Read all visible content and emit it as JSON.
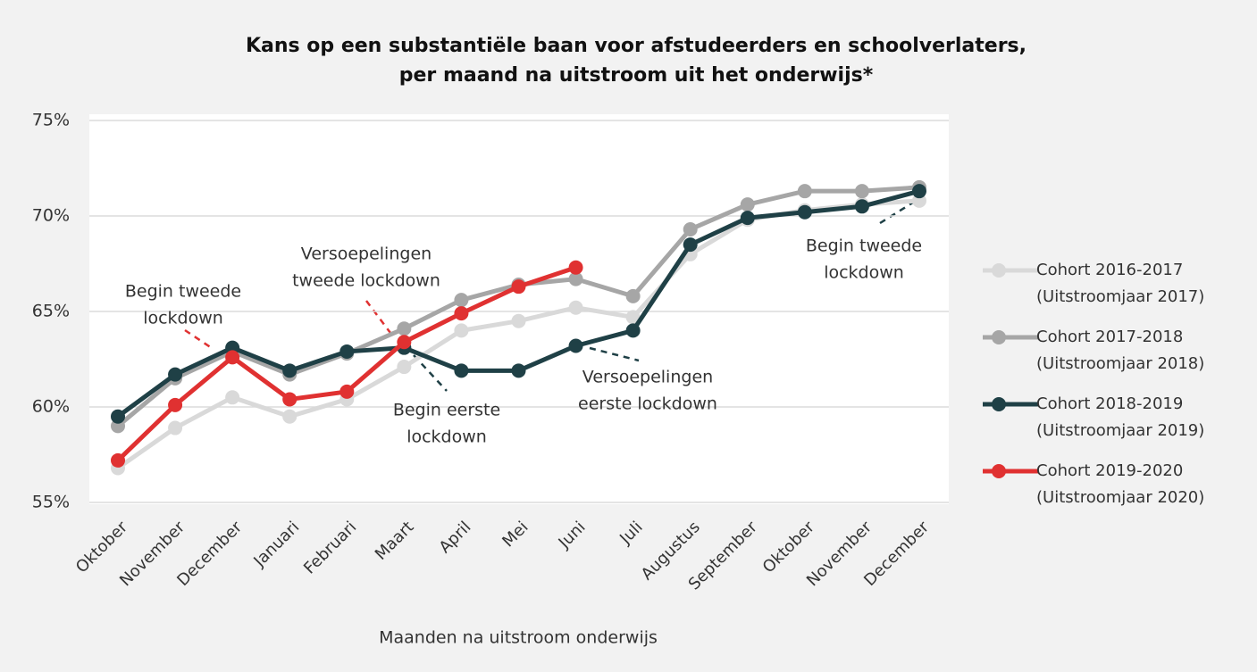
{
  "chart_data": {
    "type": "line",
    "title": [
      "Kans op een substantiële baan voor afstudeerders en schoolverlaters,",
      "per maand na uitstroom uit het onderwijs*"
    ],
    "x_label": "Maanden na uitstroom onderwijs",
    "categories": [
      "Oktober",
      "November",
      "December",
      "Januari",
      "Februari",
      "Maart",
      "April",
      "Mei",
      "Juni",
      "Juli",
      "Augustus",
      "September",
      "Oktober",
      "November",
      "December"
    ],
    "series": [
      {
        "name": "Cohort 2016-2017 (Uitstroomjaar 2017)",
        "color": "#d9d9d9",
        "values": [
          56.8,
          58.9,
          60.5,
          59.5,
          60.4,
          62.1,
          64.0,
          64.5,
          65.2,
          64.7,
          68.0,
          69.8,
          70.3,
          70.6,
          70.8
        ]
      },
      {
        "name": "Cohort 2017-2018 (Uitstroomjaar 2018)",
        "color": "#a6a6a6",
        "values": [
          59.0,
          61.5,
          62.9,
          61.7,
          62.8,
          64.1,
          65.6,
          66.4,
          66.7,
          65.8,
          69.3,
          70.6,
          71.3,
          71.3,
          71.5
        ]
      },
      {
        "name": "Cohort 2018-2019 (Uitstroomjaar 2019)",
        "color": "#1f4046",
        "values": [
          59.5,
          61.7,
          63.1,
          61.9,
          62.9,
          63.1,
          61.9,
          61.9,
          63.2,
          64.0,
          68.5,
          69.9,
          70.2,
          70.5,
          71.3
        ]
      },
      {
        "name": "Cohort 2019-2020 (Uitstroomjaar 2020)",
        "color": "#e03131",
        "values": [
          57.2,
          60.1,
          62.6,
          60.4,
          60.8,
          63.4,
          64.9,
          66.3,
          67.3,
          null,
          null,
          null,
          null,
          null,
          null
        ]
      }
    ],
    "ylim": [
      55,
      75
    ],
    "yticks": [
      {
        "value": 55,
        "label": "55%"
      },
      {
        "value": 60,
        "label": "60%"
      },
      {
        "value": 65,
        "label": "65%"
      },
      {
        "value": 70,
        "label": "70%"
      },
      {
        "value": 75,
        "label": "75%"
      }
    ],
    "grid": true,
    "legend": "right",
    "annotations": [
      [
        "Begin tweede",
        "lockdown"
      ],
      [
        "Versoepelingen",
        "tweede lockdown"
      ],
      [
        "Begin eerste",
        "lockdown"
      ],
      [
        "Versoepelingen",
        "eerste lockdown"
      ],
      [
        "Begin tweede",
        "lockdown"
      ]
    ]
  }
}
